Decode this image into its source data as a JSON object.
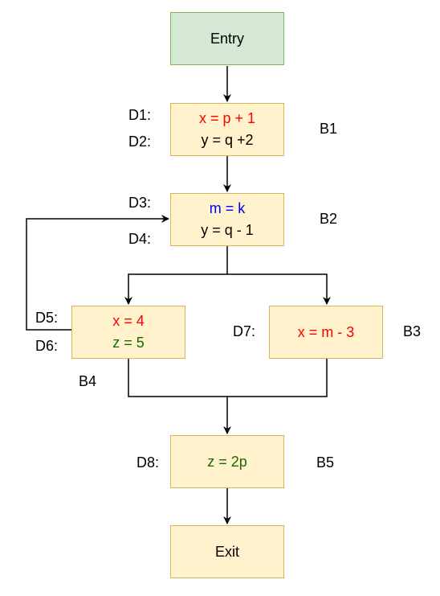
{
  "colors": {
    "entry_fill": "#d5e8d4",
    "entry_border": "#82b366",
    "block_fill": "#fff2cc",
    "block_border": "#d6b656",
    "red": "#ff0000",
    "blue": "#0000ff",
    "green": "#1a6a00"
  },
  "entry": {
    "label": "Entry"
  },
  "exit": {
    "label": "Exit"
  },
  "blocks": {
    "b1": {
      "name": "B1",
      "defs": [
        "D1:",
        "D2:"
      ],
      "lines": [
        "x = p + 1",
        "y = q +2"
      ]
    },
    "b2": {
      "name": "B2",
      "defs": [
        "D3:",
        "D4:"
      ],
      "lines": [
        "m = k",
        "y = q - 1"
      ]
    },
    "b3": {
      "name": "B3",
      "defs": [
        "D7:"
      ],
      "lines": [
        "x = m - 3"
      ]
    },
    "b4": {
      "name": "B4",
      "defs": [
        "D5:",
        "D6:"
      ],
      "lines": [
        "x = 4",
        "z = 5"
      ]
    },
    "b5": {
      "name": "B5",
      "defs": [
        "D8:"
      ],
      "lines": [
        "z = 2p"
      ]
    }
  }
}
